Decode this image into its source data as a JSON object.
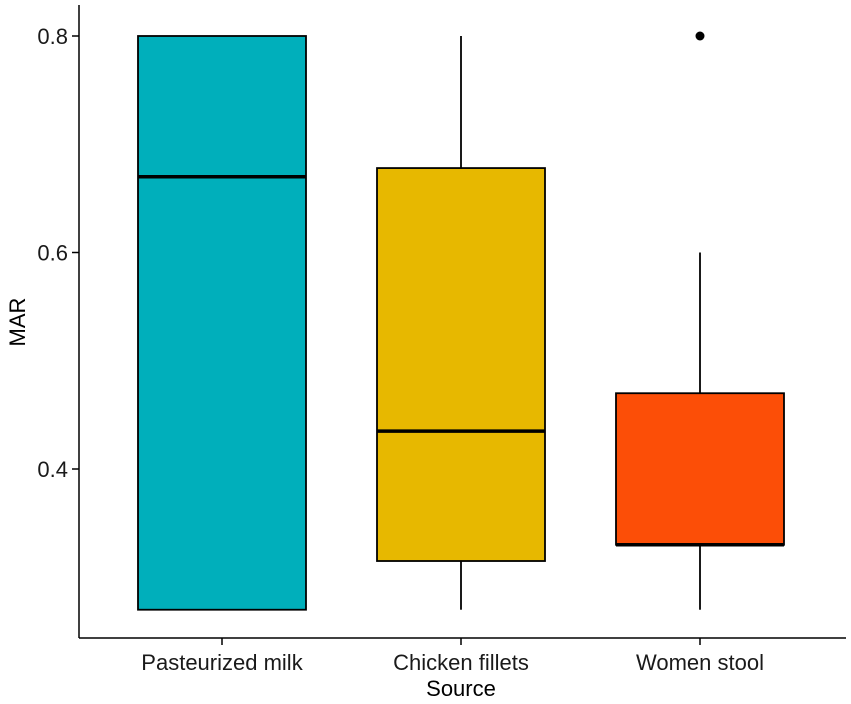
{
  "chart_data": {
    "type": "boxplot",
    "title": "",
    "xlabel": "Source",
    "ylabel": "MAR",
    "ylim": [
      0.25,
      0.81
    ],
    "yticks": [
      {
        "value": 0.4,
        "label": "0.4"
      },
      {
        "value": 0.6,
        "label": "0.6"
      },
      {
        "value": 0.8,
        "label": "0.8"
      }
    ],
    "grid": false,
    "legend": "none",
    "series": [
      {
        "category": "Pasteurized milk",
        "min": 0.27,
        "q1": 0.27,
        "median": 0.67,
        "q3": 0.8,
        "max": 0.8,
        "outliers": [],
        "color": "#00AFBB"
      },
      {
        "category": "Chicken fillets",
        "min": 0.27,
        "q1": 0.315,
        "median": 0.435,
        "q3": 0.678,
        "max": 0.8,
        "outliers": [],
        "color": "#E7B800"
      },
      {
        "category": "Women stool",
        "min": 0.27,
        "q1": 0.33,
        "median": 0.33,
        "q3": 0.47,
        "max": 0.6,
        "outliers": [
          0.8
        ],
        "color": "#FC4E07"
      }
    ]
  }
}
